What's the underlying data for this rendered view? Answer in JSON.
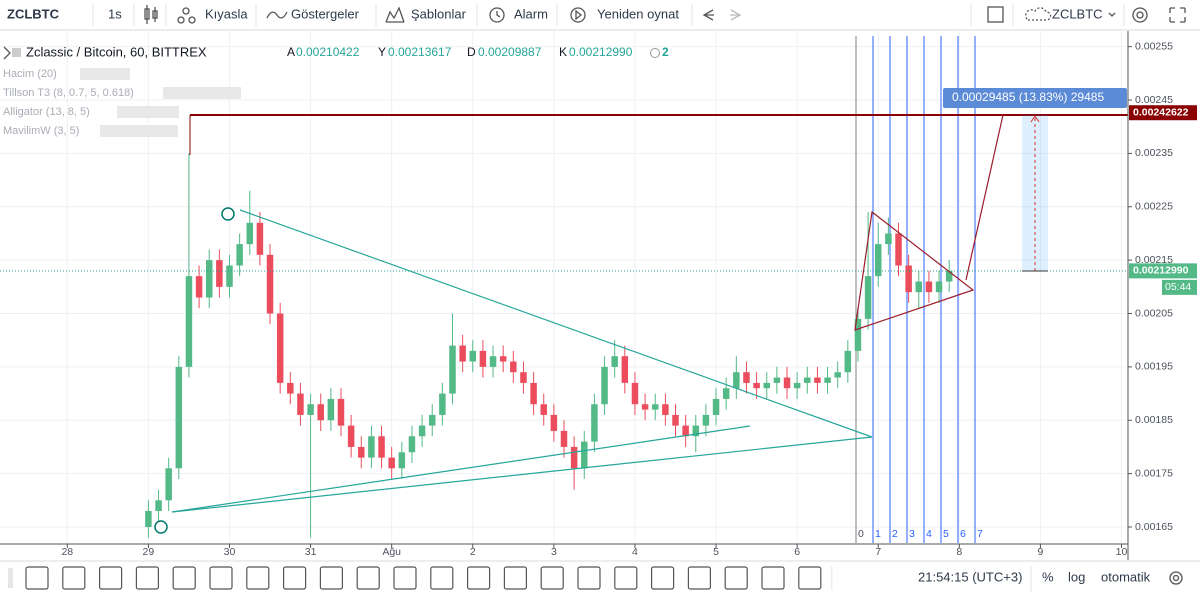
{
  "toolbar": {
    "symbol": "ZCLBTC",
    "interval": "1s",
    "items": [
      "Kıyasla",
      "Göstergeler",
      "Şablonlar",
      "Alarm",
      "Yeniden oynat"
    ],
    "right_symbol": "ZCLBTC"
  },
  "legend": {
    "title": "Zclassic / Bitcoin, 60, BITTREX",
    "ohlc": [
      {
        "label": "A",
        "value": "0.00210422"
      },
      {
        "label": "Y",
        "value": "0.00213617"
      },
      {
        "label": "D",
        "value": "0.00209887"
      },
      {
        "label": "K",
        "value": "0.00212990"
      }
    ],
    "alert_count": "2",
    "indicators": [
      "Hacim (20)",
      "Tillson T3 (8, 0.7, 5, 0.618)",
      "Alligator (13, 8, 5)",
      "MavilimW (3, 5)"
    ]
  },
  "chart_data": {
    "type": "candlestick",
    "x": [
      29,
      29.125,
      29.25,
      29.375,
      29.5,
      29.625,
      29.75,
      29.875,
      30,
      30.125,
      30.25,
      30.375,
      30.5,
      30.625,
      30.75,
      30.875,
      31,
      31.125,
      31.25,
      31.375,
      31.5,
      31.625,
      31.75,
      31.875,
      32,
      32.125,
      32.25,
      32.375,
      32.5,
      32.625,
      32.75,
      32.875,
      33,
      33.125,
      33.25,
      33.375,
      33.5,
      33.625,
      33.75,
      33.875,
      34,
      34.125,
      34.25,
      34.375,
      34.5,
      34.625,
      34.75,
      34.875,
      35,
      35.125,
      35.25,
      35.375,
      35.5,
      35.625,
      35.75,
      35.875,
      36,
      36.125,
      36.25,
      36.375,
      36.5,
      36.625,
      36.75,
      36.875,
      37,
      37.125,
      37.25,
      37.375,
      37.5,
      37.625,
      37.75,
      37.875,
      38,
      38.125,
      38.25,
      38.375,
      38.5,
      38.625,
      38.75,
      38.875
    ],
    "open": [
      0.00165,
      0.00168,
      0.0017,
      0.00176,
      0.00195,
      0.00212,
      0.00208,
      0.00215,
      0.0021,
      0.00214,
      0.00218,
      0.00222,
      0.00216,
      0.00205,
      0.00192,
      0.0019,
      0.00186,
      0.00188,
      0.00185,
      0.00189,
      0.00184,
      0.0018,
      0.00178,
      0.00182,
      0.00178,
      0.00176,
      0.00179,
      0.00182,
      0.00184,
      0.00186,
      0.0019,
      0.00199,
      0.00196,
      0.00198,
      0.00195,
      0.00197,
      0.00196,
      0.00194,
      0.00192,
      0.00188,
      0.00186,
      0.00183,
      0.0018,
      0.00176,
      0.00181,
      0.00188,
      0.00195,
      0.00197,
      0.00192,
      0.00188,
      0.00187,
      0.00188,
      0.00186,
      0.00184,
      0.00182,
      0.00184,
      0.00186,
      0.00189,
      0.00191,
      0.00194,
      0.00192,
      0.00191,
      0.00192,
      0.00193,
      0.00191,
      0.00192,
      0.00193,
      0.00192,
      0.00193,
      0.00194,
      0.00198,
      0.00204,
      0.00212,
      0.00218,
      0.0022,
      0.00214,
      0.00209,
      0.00211,
      0.00209,
      0.00211
    ],
    "high": [
      0.0017,
      0.00172,
      0.00178,
      0.00197,
      0.00235,
      0.00214,
      0.00217,
      0.00217,
      0.00216,
      0.0022,
      0.00228,
      0.00224,
      0.00218,
      0.00207,
      0.00194,
      0.00192,
      0.0019,
      0.0019,
      0.00191,
      0.00191,
      0.00186,
      0.00182,
      0.00184,
      0.00184,
      0.0018,
      0.00181,
      0.00184,
      0.00186,
      0.00188,
      0.00192,
      0.00205,
      0.00201,
      0.002,
      0.002,
      0.00199,
      0.00199,
      0.00198,
      0.00196,
      0.00194,
      0.0019,
      0.00188,
      0.00185,
      0.00182,
      0.00183,
      0.0019,
      0.00197,
      0.002,
      0.00199,
      0.00194,
      0.0019,
      0.0019,
      0.0019,
      0.00188,
      0.00186,
      0.00186,
      0.00188,
      0.00191,
      0.00193,
      0.00197,
      0.00196,
      0.00194,
      0.00194,
      0.00195,
      0.00195,
      0.00194,
      0.00195,
      0.00195,
      0.00195,
      0.00196,
      0.002,
      0.00206,
      0.00224,
      0.00222,
      0.00223,
      0.00222,
      0.00216,
      0.00213,
      0.00213,
      0.00213,
      0.00215
    ],
    "low": [
      0.00163,
      0.00166,
      0.00168,
      0.00174,
      0.00193,
      0.00206,
      0.00206,
      0.00208,
      0.00208,
      0.00212,
      0.00216,
      0.00214,
      0.00203,
      0.0019,
      0.00188,
      0.00184,
      0.00163,
      0.00183,
      0.00183,
      0.00182,
      0.00178,
      0.00176,
      0.00176,
      0.00176,
      0.00174,
      0.00174,
      0.00177,
      0.0018,
      0.00182,
      0.00184,
      0.00188,
      0.00194,
      0.00194,
      0.00193,
      0.00193,
      0.00194,
      0.00192,
      0.0019,
      0.00186,
      0.00184,
      0.00181,
      0.00178,
      0.00172,
      0.00174,
      0.00179,
      0.00186,
      0.00193,
      0.0019,
      0.00186,
      0.00185,
      0.00185,
      0.00184,
      0.00182,
      0.0018,
      0.00179,
      0.00182,
      0.00184,
      0.00187,
      0.00189,
      0.0019,
      0.00189,
      0.00189,
      0.0019,
      0.00189,
      0.00189,
      0.0019,
      0.0019,
      0.0019,
      0.00191,
      0.00192,
      0.00196,
      0.00202,
      0.0021,
      0.00216,
      0.00212,
      0.00207,
      0.00206,
      0.00207,
      0.00207,
      0.00209
    ],
    "close": [
      0.00168,
      0.0017,
      0.00176,
      0.00195,
      0.00212,
      0.00208,
      0.00215,
      0.0021,
      0.00214,
      0.00218,
      0.00222,
      0.00216,
      0.00205,
      0.00192,
      0.0019,
      0.00186,
      0.00188,
      0.00185,
      0.00189,
      0.00184,
      0.0018,
      0.00178,
      0.00182,
      0.00178,
      0.00176,
      0.00179,
      0.00182,
      0.00184,
      0.00186,
      0.0019,
      0.00199,
      0.00196,
      0.00198,
      0.00195,
      0.00197,
      0.00196,
      0.00194,
      0.00192,
      0.00188,
      0.00186,
      0.00183,
      0.0018,
      0.00176,
      0.00181,
      0.00188,
      0.00195,
      0.00197,
      0.00192,
      0.00188,
      0.00187,
      0.00188,
      0.00186,
      0.00184,
      0.00182,
      0.00184,
      0.00186,
      0.00189,
      0.00191,
      0.00194,
      0.00192,
      0.00191,
      0.00192,
      0.00193,
      0.00191,
      0.00192,
      0.00193,
      0.00192,
      0.00193,
      0.00194,
      0.00198,
      0.00204,
      0.00212,
      0.00218,
      0.0022,
      0.00214,
      0.00209,
      0.00211,
      0.00209,
      0.00211,
      0.00213
    ],
    "up_color": "#53b987",
    "down_color": "#eb4d5c",
    "xlim": [
      27.17,
      41.08
    ],
    "xticks": [
      28,
      29,
      30,
      31,
      {
        "value": 32,
        "label": "Ağu"
      },
      {
        "value": 33,
        "label": "2"
      },
      {
        "value": 34,
        "label": "3"
      },
      {
        "value": 35,
        "label": "4"
      },
      {
        "value": 36,
        "label": "5"
      },
      {
        "value": 37,
        "label": "6"
      },
      {
        "value": 38,
        "label": "7"
      },
      {
        "value": 39,
        "label": "8"
      },
      {
        "value": 40,
        "label": "9"
      },
      {
        "value": 41,
        "label": "10"
      }
    ],
    "ylim": [
      0.00162,
      0.00257
    ],
    "yticks": [
      0.00165,
      0.00175,
      0.00185,
      0.00195,
      0.00205,
      0.00215,
      0.00225,
      0.00235,
      0.00245,
      0.00255
    ],
    "grid": true,
    "price_labels": [
      {
        "value": 0.00242622,
        "color": "#8b0000"
      },
      {
        "value": 0.0021299,
        "label": "0.00212990",
        "color": "#53b987"
      }
    ],
    "countdown": "05:44",
    "measure_label": "0.00029485 (13.83%) 29485",
    "time_zone_labels": [
      "0",
      "1",
      "2",
      "3",
      "4",
      "5",
      "6",
      "7"
    ]
  },
  "status": {
    "clock": "21:54:15 (UTC+3)",
    "percent": "%",
    "log": "log",
    "auto": "otomatik"
  }
}
